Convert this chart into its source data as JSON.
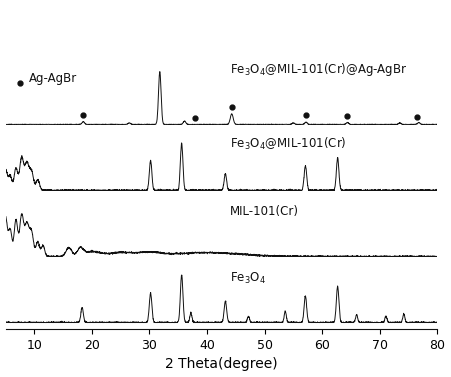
{
  "xlabel": "2 Theta(degree)",
  "xlim": [
    5,
    80
  ],
  "xticks": [
    10,
    20,
    30,
    40,
    50,
    60,
    70,
    80
  ],
  "background_color": "#ffffff",
  "line_color": "#111111",
  "offsets": [
    3.0,
    2.0,
    1.0,
    0.0
  ],
  "font_size_label": 8.5,
  "font_size_axis": 10,
  "font_size_tick": 9,
  "ylim": [
    -0.1,
    4.8
  ]
}
